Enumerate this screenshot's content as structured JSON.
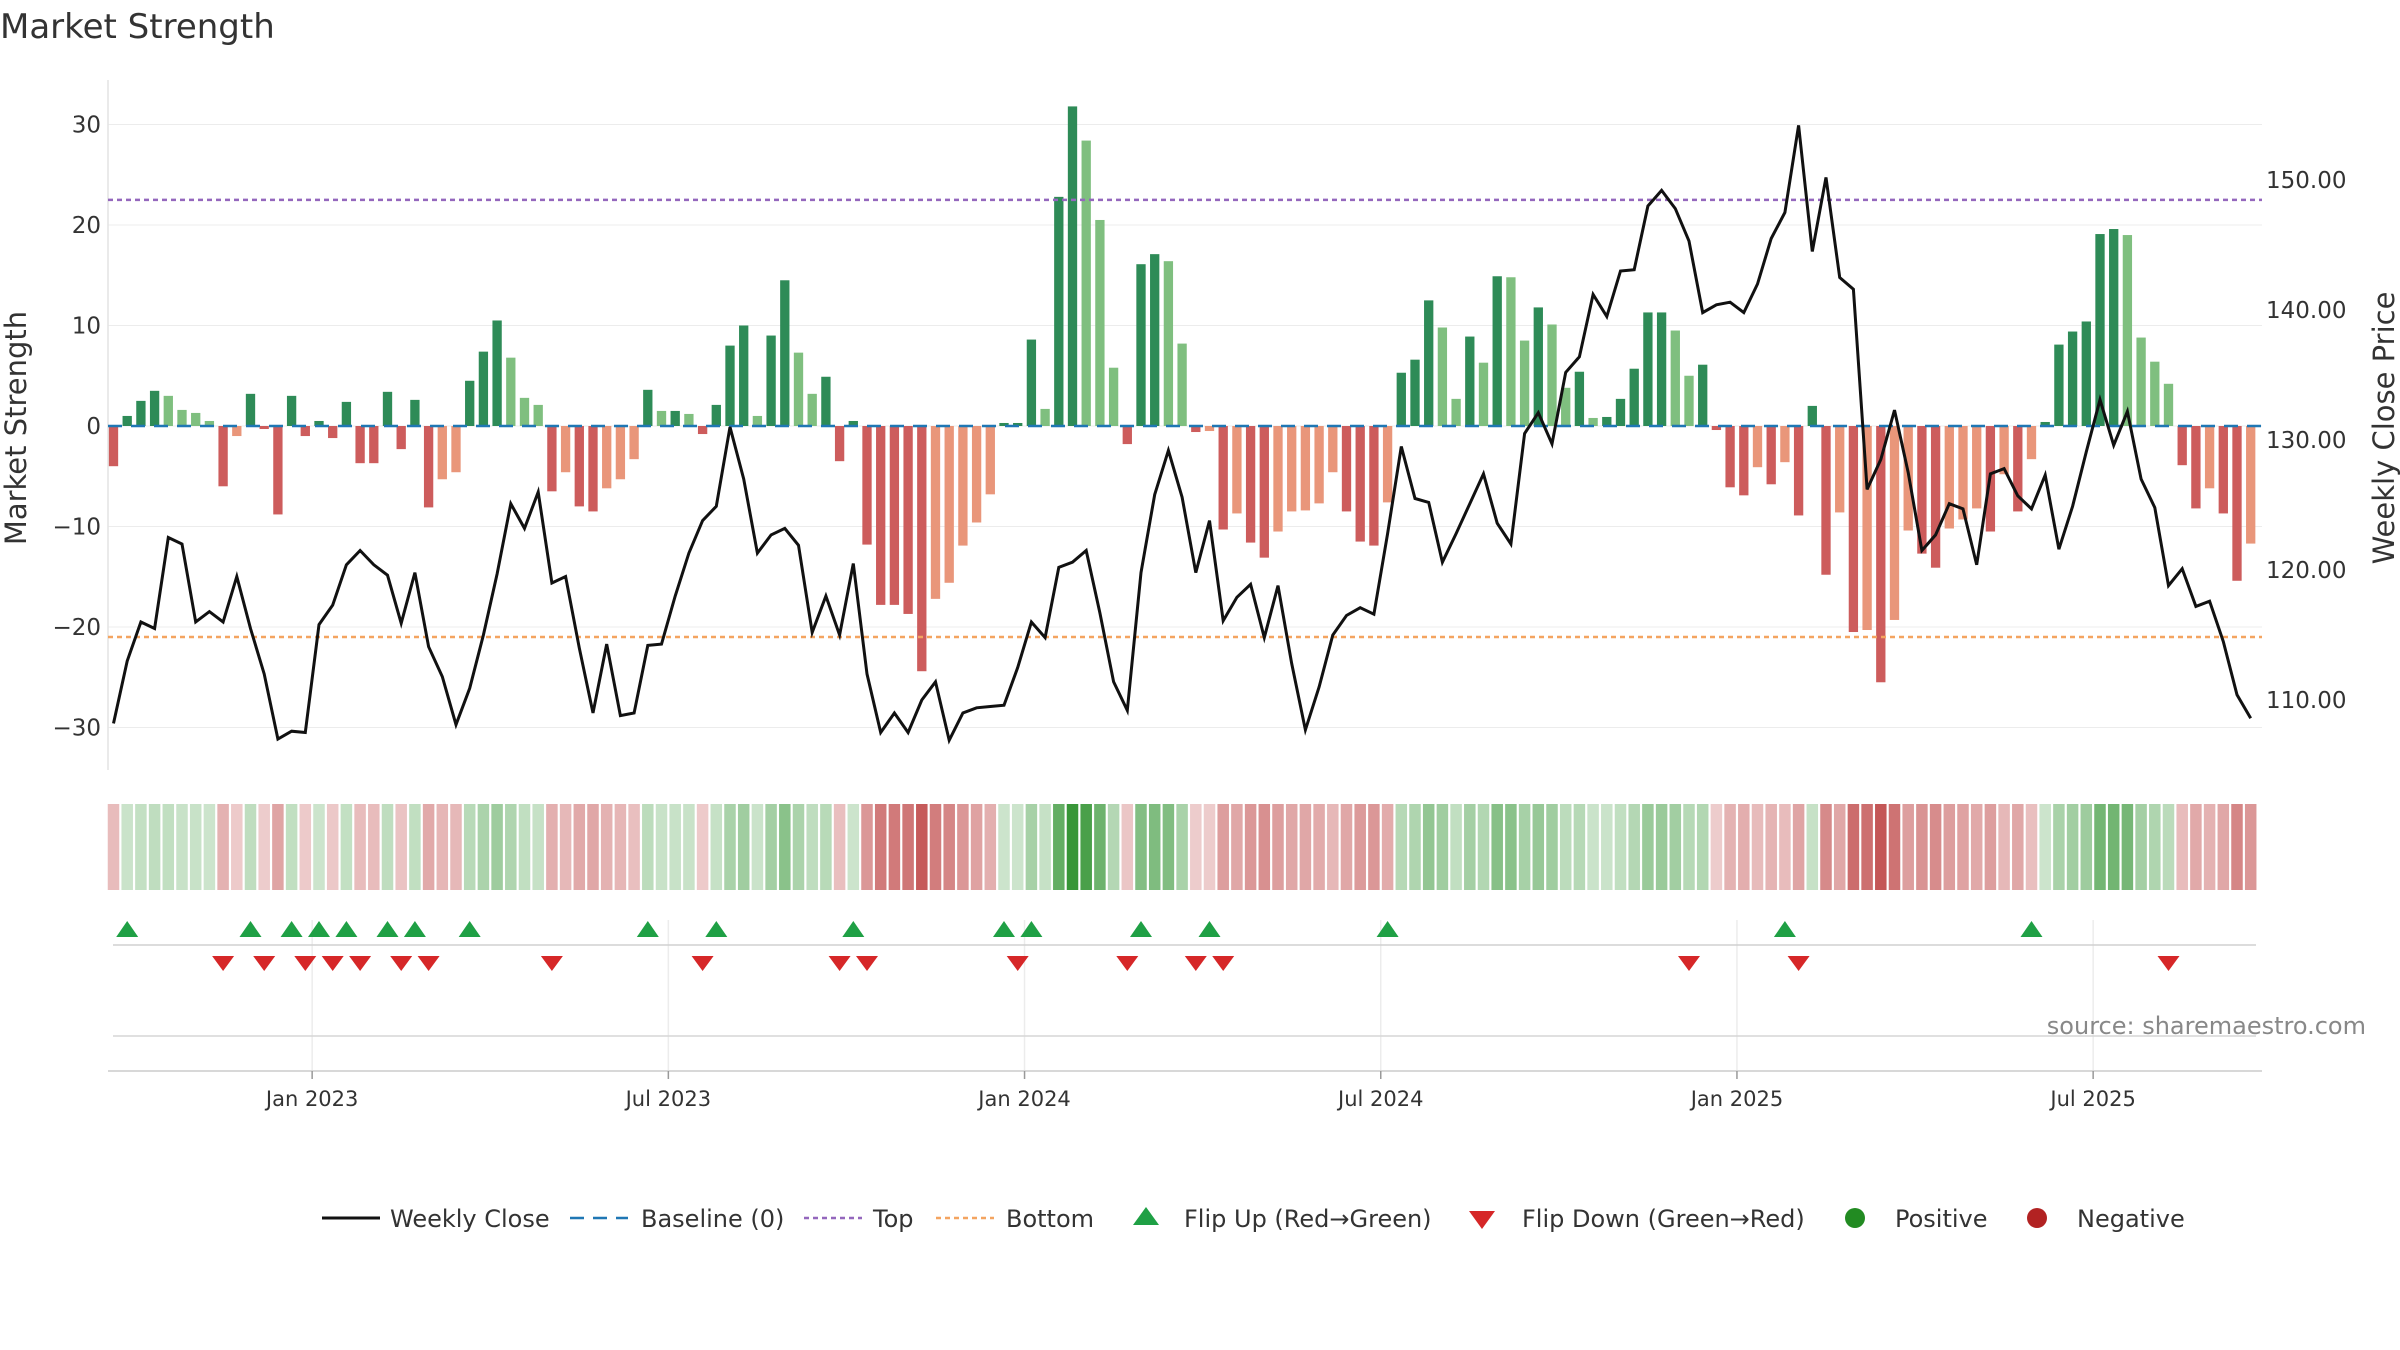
{
  "title": "Market Strength",
  "colors": {
    "strong_green": "#2e8b57",
    "light_green": "#7fbf7f",
    "strong_red": "#cd5c5c",
    "light_red": "#e9967a",
    "line": "#111111",
    "baseline": "#1f77b4",
    "top": "#9467bd",
    "bottom": "#f4a460",
    "flip_up": "#1fa045",
    "flip_down": "#d62728",
    "positive": "#228b22",
    "negative": "#b22222"
  },
  "source_text": "source: sharemaestro.com",
  "chart_data": {
    "type": "bar+line",
    "title": "Market Strength",
    "y_left": {
      "label": "Market Strength",
      "ticks": [
        30,
        20,
        10,
        0,
        -10,
        -20,
        -30
      ],
      "tick_labels": [
        "30",
        "20",
        "10",
        "0",
        "−10",
        "−20",
        "−30"
      ],
      "range": [
        -34,
        35
      ]
    },
    "y_right": {
      "label": "Weekly Close Price",
      "ticks": [
        150,
        140,
        130,
        120,
        110
      ],
      "tick_labels": [
        "150.00",
        "140.00",
        "130.00",
        "120.00",
        "110.00"
      ],
      "range": [
        103,
        158
      ]
    },
    "top_level": 22.5,
    "bottom_level": -21,
    "x_tick_labels": [
      "Jan 2023",
      "Jul 2023",
      "Jan 2024",
      "Jul 2024",
      "Jan 2025",
      "Jul 2025"
    ],
    "x_tick_weeks": [
      14.5,
      40.5,
      66.5,
      92.5,
      118.5,
      144.5
    ],
    "strength": [
      -4,
      1,
      2.5,
      3.5,
      3,
      1.6,
      1.3,
      0.5,
      -6,
      -1,
      3.2,
      -0.3,
      -8.8,
      3,
      -1,
      0.5,
      -1.2,
      2.4,
      -3.7,
      -3.7,
      3.4,
      -2.3,
      2.6,
      -8.1,
      -5.3,
      -4.6,
      4.5,
      7.4,
      10.5,
      6.8,
      2.8,
      2.1,
      -6.5,
      -4.6,
      -8,
      -8.5,
      -6.2,
      -5.3,
      -3.3,
      3.6,
      1.5,
      1.5,
      1.2,
      -0.8,
      2.1,
      8,
      10,
      1,
      9,
      14.5,
      7.3,
      3.2,
      4.9,
      -3.5,
      0.5,
      -11.8,
      -17.8,
      -17.8,
      -18.7,
      -24.4,
      -17.2,
      -15.6,
      -11.9,
      -9.6,
      -6.8,
      0.3,
      0.3,
      8.6,
      1.7,
      22.8,
      31.8,
      28.4,
      20.5,
      5.8,
      -1.8,
      16.1,
      17.1,
      16.4,
      8.2,
      -0.6,
      -0.5,
      -10.3,
      -8.7,
      -11.6,
      -13.1,
      -10.5,
      -8.5,
      -8.4,
      -7.7,
      -4.6,
      -8.5,
      -11.5,
      -11.9,
      -7.6,
      5.3,
      6.6,
      12.5,
      9.8,
      2.7,
      8.9,
      6.3,
      14.9,
      14.8,
      8.5,
      11.8,
      10.1,
      3.8,
      5.4,
      0.8,
      0.9,
      2.7,
      5.7,
      11.3,
      11.3,
      9.5,
      5,
      6.1,
      -0.4,
      -6.1,
      -6.9,
      -4.1,
      -5.8,
      -3.6,
      -8.9,
      2,
      -14.8,
      -8.6,
      -20.5,
      -20.3,
      -25.5,
      -19.3,
      -10.4,
      -12.7,
      -14.1,
      -10.2,
      -9.3,
      -8.2,
      -10.5,
      -4.8,
      -8.5,
      -3.3,
      0.4,
      8.1,
      9.4,
      10.4,
      19.1,
      19.6,
      19,
      8.8,
      6.4,
      4.2,
      -3.9,
      -8.2,
      -6.2,
      -8.7,
      -15.4,
      -11.7
    ],
    "weekly_close": [
      108.2,
      113,
      116,
      115.5,
      122.5,
      122,
      116,
      116.8,
      116,
      119.5,
      115.5,
      112,
      107,
      107.6,
      107.5,
      115.8,
      117.3,
      120.4,
      121.5,
      120.4,
      119.6,
      115.9,
      119.8,
      114.1,
      111.8,
      108.1,
      110.9,
      115,
      119.7,
      125.1,
      123.2,
      126,
      119,
      119.5,
      114,
      109,
      114.3,
      108.8,
      109,
      114.2,
      114.3,
      118,
      121.3,
      123.8,
      124.9,
      131,
      127,
      121.3,
      122.7,
      123.2,
      121.9,
      115.2,
      118,
      115,
      120.5,
      112,
      107.5,
      109,
      107.5,
      110,
      111.4,
      106.9,
      109,
      109.4,
      109.5,
      109.6,
      112.5,
      116,
      114.8,
      120.2,
      120.6,
      121.5,
      116.7,
      111.4,
      109.2,
      119.8,
      125.8,
      129.2,
      125.6,
      119.8,
      123.8,
      116.1,
      117.9,
      118.9,
      114.8,
      118.8,
      112.8,
      107.7,
      111,
      115,
      116.5,
      117.1,
      116.6,
      122.8,
      129.5,
      125.5,
      125.2,
      120.6,
      122.8,
      125.1,
      127.4,
      123.6,
      122,
      130.5,
      132.1,
      129.7,
      135.2,
      136.4,
      141.2,
      139.5,
      143,
      143.1,
      148,
      149.2,
      147.8,
      145.3,
      139.8,
      140.4,
      140.6,
      139.8,
      142,
      145.5,
      147.5,
      154.2,
      144.5,
      150.2,
      142.5,
      141.6,
      126.2,
      128.5,
      132.3,
      127.5,
      121.5,
      122.7,
      125.1,
      124.7,
      120.4,
      127.4,
      127.8,
      125.7,
      124.7,
      127.3,
      121.6,
      124.9,
      129.1,
      133.1,
      129.6,
      132.2,
      127,
      124.8,
      118.8,
      120.1,
      117.2,
      117.6,
      114.5,
      110.4,
      108.6
    ],
    "flip_up_weeks": [
      1,
      10,
      13,
      15,
      17,
      20,
      22,
      26,
      39,
      44,
      54,
      65,
      67,
      75,
      80,
      93,
      122,
      140
    ],
    "flip_down_weeks": [
      8,
      11,
      14,
      16,
      18,
      21,
      23,
      32,
      43,
      53,
      55,
      66,
      74,
      79,
      81,
      115,
      123,
      150
    ],
    "legend": [
      "Weekly Close",
      "Baseline (0)",
      "Top",
      "Bottom",
      "Flip Up (Red→Green)",
      "Flip Down (Green→Red)",
      "Positive",
      "Negative"
    ]
  }
}
